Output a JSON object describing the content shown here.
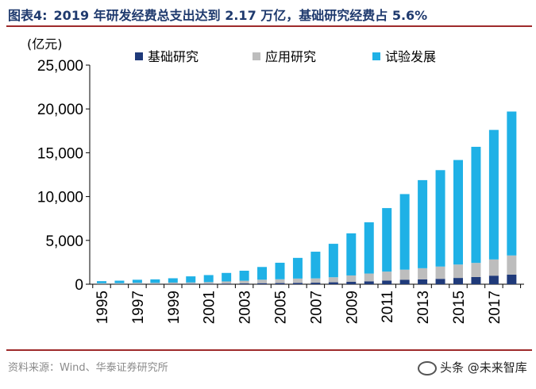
{
  "figure": {
    "label": "图表4:",
    "title": "2019 年研发经费总支出达到 2.17 万亿，基础研究经费占 5.6%",
    "source": "资料来源：Wind、华泰证券研究所",
    "watermark": "头条 @未来智库"
  },
  "chart_data": {
    "type": "bar",
    "stacked": true,
    "ylabel": "(亿元)",
    "ylim": [
      0,
      25000
    ],
    "yticks": [
      "0",
      "5,000",
      "10,000",
      "15,000",
      "20,000",
      "25,000"
    ],
    "ytick_values": [
      0,
      5000,
      10000,
      15000,
      20000,
      25000
    ],
    "xtick_labels": [
      "1995",
      "1997",
      "1999",
      "2001",
      "2003",
      "2005",
      "2007",
      "2009",
      "2011",
      "2013",
      "2015",
      "2017"
    ],
    "categories": [
      "1995",
      "1996",
      "1997",
      "1998",
      "1999",
      "2000",
      "2001",
      "2002",
      "2003",
      "2004",
      "2005",
      "2006",
      "2007",
      "2008",
      "2009",
      "2010",
      "2011",
      "2012",
      "2013",
      "2014",
      "2015",
      "2016",
      "2017",
      "2018"
    ],
    "legend_position": "top",
    "grid": false,
    "series": [
      {
        "name": "基础研究",
        "color": "#1f3a7a",
        "values": [
          18,
          20,
          27,
          28,
          33,
          46,
          55,
          73,
          87,
          117,
          131,
          155,
          174,
          220,
          270,
          324,
          412,
          499,
          555,
          614,
          716,
          823,
          976,
          1090
        ]
      },
      {
        "name": "应用研究",
        "color": "#bdbdbd",
        "values": [
          92,
          99,
          132,
          124,
          151,
          152,
          185,
          247,
          311,
          400,
          434,
          489,
          493,
          575,
          730,
          894,
          1028,
          1162,
          1270,
          1399,
          1528,
          1610,
          1849,
          2190
        ]
      },
      {
        "name": "试验发展",
        "color": "#1fb1e6",
        "values": [
          239,
          286,
          350,
          399,
          495,
          698,
          803,
          967,
          1142,
          1449,
          1885,
          2360,
          3043,
          3816,
          4802,
          5844,
          7246,
          8623,
          10051,
          11003,
          11927,
          13244,
          14780,
          16422
        ]
      }
    ]
  }
}
